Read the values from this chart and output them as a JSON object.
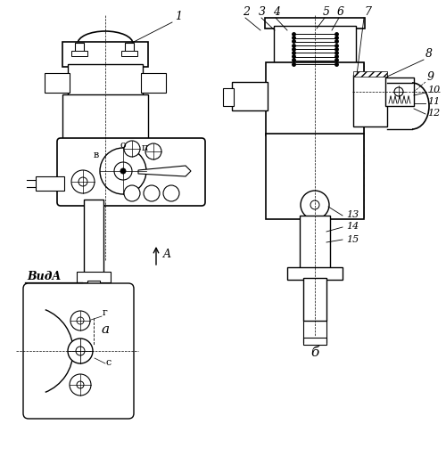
{
  "bg_color": "#ffffff",
  "line_color": "#000000",
  "fig_width": 5.0,
  "fig_height": 5.22,
  "view_labels": {
    "a": "а",
    "b": "б",
    "vidA": "ВидA",
    "o": "о",
    "p": "п",
    "v": "в",
    "g": "г",
    "s": "с"
  }
}
